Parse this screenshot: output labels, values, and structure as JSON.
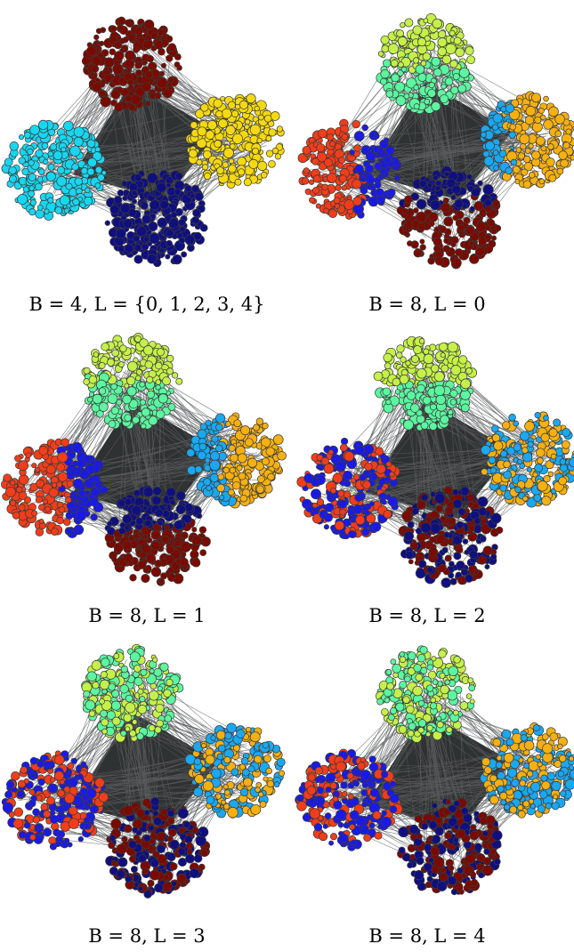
{
  "panels": [
    {
      "caption": "B = 4, L = {0, 1, 2, 3, 4}",
      "clusters": [
        {
          "position": "top",
          "groups": [
            {
              "color": "#7a0a00",
              "share": 1.0
            }
          ]
        },
        {
          "position": "left",
          "groups": [
            {
              "color": "#19d6f0",
              "share": 1.0
            }
          ]
        },
        {
          "position": "right",
          "groups": [
            {
              "color": "#f5d90f",
              "share": 1.0
            }
          ]
        },
        {
          "position": "bottom",
          "groups": [
            {
              "color": "#0f0f80",
              "share": 1.0
            }
          ]
        }
      ]
    },
    {
      "caption": "B = 8, L = 0",
      "clusters": [
        {
          "position": "top",
          "groups": [
            {
              "color": "#c5f04a",
              "share": 0.5,
              "side": "top"
            },
            {
              "color": "#5cf5a0",
              "share": 0.5,
              "side": "bottom"
            }
          ]
        },
        {
          "position": "left",
          "groups": [
            {
              "color": "#f23d1a",
              "share": 0.6,
              "side": "left"
            },
            {
              "color": "#1a1ae6",
              "share": 0.4,
              "side": "right"
            }
          ]
        },
        {
          "position": "right",
          "groups": [
            {
              "color": "#f5b011",
              "share": 0.7,
              "side": "right"
            },
            {
              "color": "#1aa8f0",
              "share": 0.3,
              "side": "left"
            }
          ]
        },
        {
          "position": "bottom",
          "groups": [
            {
              "color": "#0f0f80",
              "share": 0.35,
              "side": "top"
            },
            {
              "color": "#7a0a00",
              "share": 0.65,
              "side": "bottom"
            }
          ]
        }
      ]
    },
    {
      "caption": "B = 8, L = 1",
      "clusters": [
        {
          "position": "top",
          "groups": [
            {
              "color": "#c5f04a",
              "share": 0.5,
              "side": "top"
            },
            {
              "color": "#5cf5a0",
              "share": 0.5,
              "side": "bottom"
            }
          ]
        },
        {
          "position": "left",
          "groups": [
            {
              "color": "#f23d1a",
              "share": 0.6,
              "side": "left"
            },
            {
              "color": "#1a1ae6",
              "share": 0.4,
              "side": "right"
            }
          ]
        },
        {
          "position": "right",
          "groups": [
            {
              "color": "#f5b011",
              "share": 0.6,
              "side": "right"
            },
            {
              "color": "#1aa8f0",
              "share": 0.4,
              "side": "left"
            }
          ]
        },
        {
          "position": "bottom",
          "groups": [
            {
              "color": "#0f0f80",
              "share": 0.4,
              "side": "top"
            },
            {
              "color": "#7a0a00",
              "share": 0.6,
              "side": "bottom"
            }
          ]
        }
      ]
    },
    {
      "caption": "B = 8, L = 2",
      "clusters": [
        {
          "position": "top",
          "groups": [
            {
              "color": "#c5f04a",
              "share": 0.5,
              "side": "top"
            },
            {
              "color": "#5cf5a0",
              "share": 0.5,
              "side": "bottom"
            }
          ]
        },
        {
          "position": "left",
          "groups": [
            {
              "color": "#f23d1a",
              "share": 0.5,
              "side": "mixed"
            },
            {
              "color": "#1a1ae6",
              "share": 0.5,
              "side": "mixed"
            }
          ]
        },
        {
          "position": "right",
          "groups": [
            {
              "color": "#f5b011",
              "share": 0.5,
              "side": "mixed"
            },
            {
              "color": "#1aa8f0",
              "share": 0.5,
              "side": "mixed"
            }
          ]
        },
        {
          "position": "bottom",
          "groups": [
            {
              "color": "#0f0f80",
              "share": 0.5,
              "side": "mixed"
            },
            {
              "color": "#7a0a00",
              "share": 0.5,
              "side": "mixed"
            }
          ]
        }
      ]
    },
    {
      "caption": "B = 8, L = 3",
      "clusters": [
        {
          "position": "top",
          "groups": [
            {
              "color": "#c5f04a",
              "share": 0.5,
              "side": "mixed"
            },
            {
              "color": "#5cf5a0",
              "share": 0.5,
              "side": "mixed"
            }
          ]
        },
        {
          "position": "left",
          "groups": [
            {
              "color": "#f23d1a",
              "share": 0.5,
              "side": "mixed"
            },
            {
              "color": "#1a1ae6",
              "share": 0.5,
              "side": "mixed"
            }
          ]
        },
        {
          "position": "right",
          "groups": [
            {
              "color": "#f5b011",
              "share": 0.5,
              "side": "mixed"
            },
            {
              "color": "#1aa8f0",
              "share": 0.5,
              "side": "mixed"
            }
          ]
        },
        {
          "position": "bottom",
          "groups": [
            {
              "color": "#0f0f80",
              "share": 0.5,
              "side": "mixed"
            },
            {
              "color": "#7a0a00",
              "share": 0.5,
              "side": "mixed"
            }
          ]
        }
      ]
    },
    {
      "caption": "B = 8, L = 4",
      "clusters": [
        {
          "position": "top",
          "groups": [
            {
              "color": "#c5f04a",
              "share": 0.5,
              "side": "mixed"
            },
            {
              "color": "#5cf5a0",
              "share": 0.5,
              "side": "mixed"
            }
          ]
        },
        {
          "position": "left",
          "groups": [
            {
              "color": "#f23d1a",
              "share": 0.5,
              "side": "mixed"
            },
            {
              "color": "#1a1ae6",
              "share": 0.5,
              "side": "mixed"
            }
          ]
        },
        {
          "position": "right",
          "groups": [
            {
              "color": "#f5b011",
              "share": 0.5,
              "side": "mixed"
            },
            {
              "color": "#1aa8f0",
              "share": 0.5,
              "side": "mixed"
            }
          ]
        },
        {
          "position": "bottom",
          "groups": [
            {
              "color": "#0f0f80",
              "share": 0.5,
              "side": "mixed"
            },
            {
              "color": "#7a0a00",
              "share": 0.5,
              "side": "mixed"
            }
          ]
        }
      ]
    }
  ],
  "style": {
    "background": "#ffffff",
    "edge_fill": "#2f3233",
    "edge_line": "#5a5d5e",
    "node_stroke": "#3a3a3a"
  }
}
